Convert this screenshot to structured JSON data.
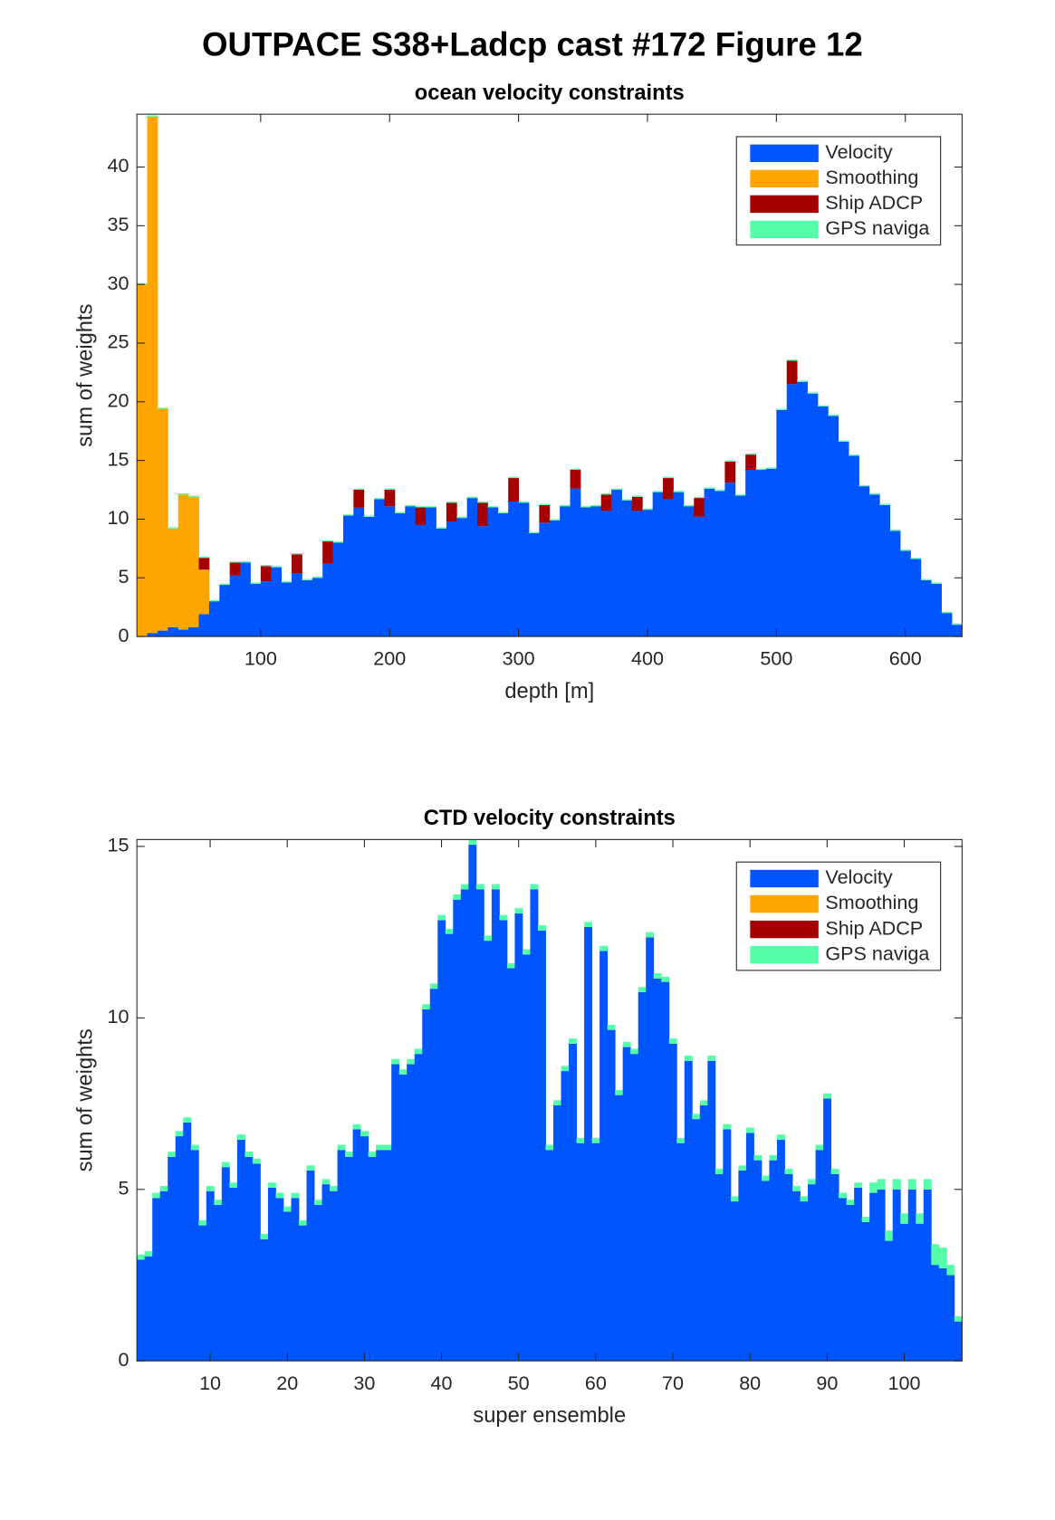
{
  "title": "OUTPACE S38+Ladcp cast #172  Figure 12",
  "chart_data": [
    {
      "type": "bar",
      "stacked": true,
      "title": "ocean velocity constraints",
      "xlabel": "depth [m]",
      "ylabel": "sum of weights",
      "x": [
        8,
        16,
        24,
        32,
        40,
        48,
        56,
        64,
        72,
        80,
        88,
        96,
        104,
        112,
        120,
        128,
        136,
        144,
        152,
        160,
        168,
        176,
        184,
        192,
        200,
        208,
        216,
        224,
        232,
        240,
        248,
        256,
        264,
        272,
        280,
        288,
        296,
        304,
        312,
        320,
        328,
        336,
        344,
        352,
        360,
        368,
        376,
        384,
        392,
        400,
        408,
        416,
        424,
        432,
        440,
        448,
        456,
        464,
        472,
        480,
        488,
        496,
        504,
        512,
        520,
        528,
        536,
        544,
        552,
        560,
        568,
        576,
        584,
        592,
        600,
        608,
        616,
        624,
        632,
        640
      ],
      "series": [
        {
          "name": "Velocity",
          "color": "#0055ff",
          "values": [
            0,
            0.3,
            0.5,
            0.8,
            0.6,
            0.8,
            1.9,
            3.0,
            4.4,
            5.2,
            6.3,
            4.5,
            4.7,
            5.9,
            4.6,
            5.4,
            4.8,
            5.0,
            6.2,
            8.0,
            10.3,
            11.0,
            10.2,
            11.7,
            11.1,
            10.5,
            11.1,
            9.5,
            11.0,
            9.2,
            9.8,
            10.1,
            11.8,
            9.4,
            11.0,
            10.5,
            11.5,
            11.4,
            8.8,
            9.7,
            9.9,
            11.1,
            12.6,
            11.0,
            11.1,
            10.7,
            12.5,
            11.6,
            10.7,
            10.8,
            12.3,
            11.7,
            12.3,
            11.1,
            10.2,
            12.6,
            12.4,
            13.1,
            12.0,
            14.2,
            14.2,
            14.3,
            19.3,
            21.5,
            21.7,
            20.7,
            19.6,
            18.8,
            16.6,
            15.4,
            12.8,
            12.1,
            11.2,
            9.0,
            7.3,
            6.6,
            4.8,
            4.5,
            2.0,
            1.0
          ]
        },
        {
          "name": "Smoothing",
          "color": "#ffa500",
          "values": [
            30,
            44,
            18.9,
            8.4,
            11.5,
            11.1,
            3.8,
            0,
            0,
            0,
            0,
            0,
            0,
            0,
            0,
            0,
            0,
            0,
            0,
            0,
            0,
            0,
            0,
            0,
            0,
            0,
            0,
            0,
            0,
            0,
            0,
            0,
            0,
            0,
            0,
            0,
            0,
            0,
            0,
            0,
            0,
            0,
            0,
            0,
            0,
            0,
            0,
            0,
            0,
            0,
            0,
            0,
            0,
            0,
            0,
            0,
            0,
            0,
            0,
            0,
            0,
            0,
            0,
            0,
            0,
            0,
            0,
            0,
            0,
            0,
            0,
            0,
            0,
            0,
            0,
            0,
            0,
            0,
            0,
            0
          ]
        },
        {
          "name": "Ship ADCP",
          "color": "#a50000",
          "values": [
            0,
            0,
            0,
            0,
            0,
            0,
            1.0,
            0,
            0,
            1.1,
            0,
            0,
            1.3,
            0,
            0,
            1.6,
            0,
            0,
            1.9,
            0,
            0,
            1.5,
            0,
            0,
            1.4,
            0,
            0,
            1.5,
            0,
            0,
            1.6,
            0,
            0,
            2.0,
            0,
            0,
            2.0,
            0,
            0,
            1.5,
            0,
            0,
            1.6,
            0,
            0,
            1.4,
            0,
            0,
            1.2,
            0,
            0,
            1.8,
            0,
            0,
            1.6,
            0,
            0,
            1.8,
            0,
            1.3,
            0,
            0,
            0,
            2.0,
            0,
            0,
            0,
            0,
            0,
            0,
            0,
            0,
            0,
            0,
            0,
            0,
            0,
            0,
            0,
            0
          ]
        },
        {
          "name": "GPS naviga",
          "color": "#55ffaa",
          "values": [
            0.1,
            0.1,
            0.1,
            0.1,
            0.1,
            0.1,
            0.1,
            0.1,
            0.1,
            0.1,
            0.1,
            0.1,
            0.1,
            0.1,
            0.1,
            0.1,
            0.1,
            0.1,
            0.1,
            0.1,
            0.1,
            0.1,
            0.1,
            0.1,
            0.1,
            0.1,
            0.1,
            0.1,
            0.1,
            0.1,
            0.1,
            0.1,
            0.1,
            0.1,
            0.1,
            0.1,
            0.1,
            0.1,
            0.1,
            0.1,
            0.1,
            0.1,
            0.1,
            0.1,
            0.1,
            0.1,
            0.1,
            0.1,
            0.1,
            0.1,
            0.1,
            0.1,
            0.1,
            0.1,
            0.1,
            0.1,
            0.1,
            0.1,
            0.1,
            0.1,
            0.1,
            0.1,
            0.1,
            0.1,
            0.1,
            0.1,
            0.1,
            0.1,
            0.1,
            0.1,
            0.1,
            0.1,
            0.1,
            0.1,
            0.1,
            0.1,
            0.1,
            0.1,
            0.1,
            0.1
          ]
        }
      ],
      "xlim": [
        4,
        644
      ],
      "ylim": [
        0,
        44.5
      ],
      "xticks": [
        100,
        200,
        300,
        400,
        500,
        600
      ],
      "yticks": [
        0,
        5,
        10,
        15,
        20,
        25,
        30,
        35,
        40
      ],
      "legend": "northeast"
    },
    {
      "type": "bar",
      "stacked": true,
      "title": "CTD velocity constraints",
      "xlabel": "super ensemble",
      "ylabel": "sum of weights",
      "x": [
        1,
        2,
        3,
        4,
        5,
        6,
        7,
        8,
        9,
        10,
        11,
        12,
        13,
        14,
        15,
        16,
        17,
        18,
        19,
        20,
        21,
        22,
        23,
        24,
        25,
        26,
        27,
        28,
        29,
        30,
        31,
        32,
        33,
        34,
        35,
        36,
        37,
        38,
        39,
        40,
        41,
        42,
        43,
        44,
        45,
        46,
        47,
        48,
        49,
        50,
        51,
        52,
        53,
        54,
        55,
        56,
        57,
        58,
        59,
        60,
        61,
        62,
        63,
        64,
        65,
        66,
        67,
        68,
        69,
        70,
        71,
        72,
        73,
        74,
        75,
        76,
        77,
        78,
        79,
        80,
        81,
        82,
        83,
        84,
        85,
        86,
        87,
        88,
        89,
        90,
        91,
        92,
        93,
        94,
        95,
        96,
        97,
        98,
        99,
        100,
        101,
        102,
        103,
        104,
        105,
        106,
        107
      ],
      "series": [
        {
          "name": "Velocity",
          "color": "#0055ff",
          "values": [
            2.95,
            3.05,
            4.75,
            4.95,
            5.95,
            6.55,
            6.95,
            6.15,
            3.95,
            4.95,
            4.55,
            5.65,
            5.05,
            6.45,
            5.95,
            5.75,
            3.55,
            5.05,
            4.75,
            4.35,
            4.75,
            3.95,
            5.55,
            4.55,
            5.15,
            4.95,
            6.15,
            5.95,
            6.75,
            6.55,
            5.95,
            6.15,
            6.15,
            8.65,
            8.35,
            8.65,
            8.95,
            10.25,
            10.85,
            12.85,
            12.45,
            13.45,
            13.75,
            15.05,
            13.75,
            12.25,
            13.75,
            12.85,
            11.45,
            13.05,
            11.85,
            13.75,
            12.55,
            6.15,
            7.45,
            8.45,
            9.25,
            6.35,
            12.65,
            6.35,
            11.95,
            9.65,
            7.75,
            9.15,
            8.95,
            10.75,
            12.35,
            11.15,
            11.05,
            9.25,
            6.35,
            8.75,
            7.05,
            7.45,
            8.75,
            5.45,
            6.75,
            4.65,
            5.55,
            6.65,
            5.85,
            5.25,
            5.85,
            6.45,
            5.45,
            4.95,
            4.65,
            5.15,
            6.15,
            7.65,
            5.45,
            4.75,
            4.55,
            5.05,
            4.05,
            4.9,
            5.0,
            3.5,
            5.0,
            4.0,
            5.0,
            4.0,
            5.0,
            2.8,
            2.7,
            2.5,
            1.15
          ]
        },
        {
          "name": "Smoothing",
          "color": "#ffa500",
          "values": [
            0,
            0,
            0,
            0,
            0,
            0,
            0,
            0,
            0,
            0,
            0,
            0,
            0,
            0,
            0,
            0,
            0,
            0,
            0,
            0,
            0,
            0,
            0,
            0,
            0,
            0,
            0,
            0,
            0,
            0,
            0,
            0,
            0,
            0,
            0,
            0,
            0,
            0,
            0,
            0,
            0,
            0,
            0,
            0,
            0,
            0,
            0,
            0,
            0,
            0,
            0,
            0,
            0,
            0,
            0,
            0,
            0,
            0,
            0,
            0,
            0,
            0,
            0,
            0,
            0,
            0,
            0,
            0,
            0,
            0,
            0,
            0,
            0,
            0,
            0,
            0,
            0,
            0,
            0,
            0,
            0,
            0,
            0,
            0,
            0,
            0,
            0,
            0,
            0,
            0,
            0,
            0,
            0,
            0,
            0,
            0,
            0,
            0,
            0,
            0,
            0,
            0,
            0,
            0,
            0,
            0,
            0
          ]
        },
        {
          "name": "Ship ADCP",
          "color": "#a50000",
          "values": [
            0,
            0,
            0,
            0,
            0,
            0,
            0,
            0,
            0,
            0,
            0,
            0,
            0,
            0,
            0,
            0,
            0,
            0,
            0,
            0,
            0,
            0,
            0,
            0,
            0,
            0,
            0,
            0,
            0,
            0,
            0,
            0,
            0,
            0,
            0,
            0,
            0,
            0,
            0,
            0,
            0,
            0,
            0,
            0,
            0,
            0,
            0,
            0,
            0,
            0,
            0,
            0,
            0,
            0,
            0,
            0,
            0,
            0,
            0,
            0,
            0,
            0,
            0,
            0,
            0,
            0,
            0,
            0,
            0,
            0,
            0,
            0,
            0,
            0,
            0,
            0,
            0,
            0,
            0,
            0,
            0,
            0,
            0,
            0,
            0,
            0,
            0,
            0,
            0,
            0,
            0,
            0,
            0,
            0,
            0,
            0,
            0,
            0,
            0,
            0,
            0,
            0,
            0,
            0,
            0,
            0,
            0
          ]
        },
        {
          "name": "GPS naviga",
          "color": "#55ffaa",
          "values": [
            0.15,
            0.15,
            0.15,
            0.15,
            0.15,
            0.15,
            0.15,
            0.15,
            0.15,
            0.15,
            0.15,
            0.15,
            0.15,
            0.15,
            0.15,
            0.15,
            0.15,
            0.15,
            0.15,
            0.15,
            0.15,
            0.15,
            0.15,
            0.15,
            0.15,
            0.15,
            0.15,
            0.15,
            0.15,
            0.15,
            0.15,
            0.15,
            0.15,
            0.15,
            0.15,
            0.15,
            0.15,
            0.15,
            0.15,
            0.15,
            0.15,
            0.15,
            0.15,
            0.15,
            0.15,
            0.15,
            0.15,
            0.15,
            0.15,
            0.15,
            0.15,
            0.15,
            0.15,
            0.15,
            0.15,
            0.15,
            0.15,
            0.15,
            0.15,
            0.15,
            0.15,
            0.15,
            0.15,
            0.15,
            0.15,
            0.15,
            0.15,
            0.15,
            0.15,
            0.15,
            0.15,
            0.15,
            0.15,
            0.15,
            0.15,
            0.15,
            0.15,
            0.15,
            0.15,
            0.15,
            0.15,
            0.15,
            0.15,
            0.15,
            0.15,
            0.15,
            0.15,
            0.15,
            0.15,
            0.15,
            0.15,
            0.15,
            0.15,
            0.15,
            0.15,
            0.3,
            0.3,
            0.3,
            0.3,
            0.3,
            0.3,
            0.3,
            0.3,
            0.6,
            0.6,
            0.3,
            0.15
          ]
        }
      ],
      "xlim": [
        0.5,
        107.5
      ],
      "ylim": [
        0,
        15.2
      ],
      "xticks": [
        10,
        20,
        30,
        40,
        50,
        60,
        70,
        80,
        90,
        100
      ],
      "yticks": [
        0,
        5,
        10,
        15
      ],
      "legend": "northeast"
    }
  ]
}
